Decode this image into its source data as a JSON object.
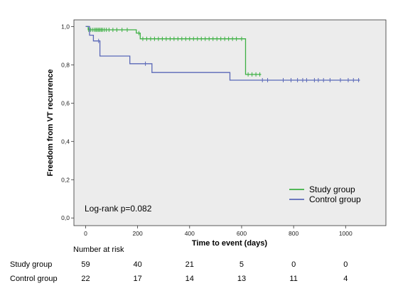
{
  "chart_data": {
    "type": "line",
    "subtype": "kaplan-meier",
    "xlabel": "Time to event (days)",
    "ylabel": "Freedom from VT recurrence",
    "xlim": [
      -45,
      1155
    ],
    "ylim": [
      -0.04,
      1.035
    ],
    "x_ticks": [
      "0",
      "200",
      "400",
      "600",
      "800",
      "1000"
    ],
    "x_tick_values": [
      0,
      200,
      400,
      600,
      800,
      1000
    ],
    "y_ticks": [
      "0,0",
      "0,2",
      "0,4",
      "0,6",
      "0,8",
      "1,0"
    ],
    "y_tick_values": [
      0,
      0.2,
      0.4,
      0.6,
      0.8,
      1.0
    ],
    "grid": false,
    "plot_background": "#ececec",
    "annotation": "Log-rank p=0.082",
    "legend_position": "bottom-right",
    "series": [
      {
        "name": "Study group",
        "color": "#3cb043",
        "steps": [
          [
            0,
            1.0
          ],
          [
            10,
            0.983
          ],
          [
            195,
            0.966
          ],
          [
            210,
            0.936
          ],
          [
            615,
            0.75
          ],
          [
            675,
            0.75
          ]
        ],
        "censored": [
          12,
          20,
          28,
          35,
          40,
          45,
          50,
          55,
          60,
          65,
          72,
          80,
          90,
          105,
          120,
          140,
          160,
          205,
          220,
          235,
          250,
          265,
          280,
          295,
          310,
          325,
          340,
          355,
          370,
          385,
          400,
          415,
          430,
          445,
          460,
          475,
          490,
          505,
          520,
          535,
          550,
          565,
          580,
          600,
          625,
          640,
          655,
          670
        ]
      },
      {
        "name": "Control group",
        "color": "#5a68b8",
        "steps": [
          [
            0,
            1.0
          ],
          [
            15,
            0.955
          ],
          [
            30,
            0.925
          ],
          [
            55,
            0.846
          ],
          [
            170,
            0.806
          ],
          [
            255,
            0.76
          ],
          [
            555,
            0.72
          ],
          [
            1055,
            0.72
          ]
        ],
        "censored": [
          50,
          230,
          680,
          700,
          760,
          790,
          815,
          835,
          850,
          880,
          895,
          915,
          940,
          980,
          1010,
          1030,
          1050
        ]
      }
    ]
  },
  "risk_table": {
    "title": "Number at risk",
    "rows": [
      {
        "label": "Study group",
        "values": [
          "59",
          "40",
          "21",
          "5",
          "0",
          "0"
        ]
      },
      {
        "label": "Control group",
        "values": [
          "22",
          "17",
          "14",
          "13",
          "11",
          "4"
        ]
      }
    ]
  }
}
